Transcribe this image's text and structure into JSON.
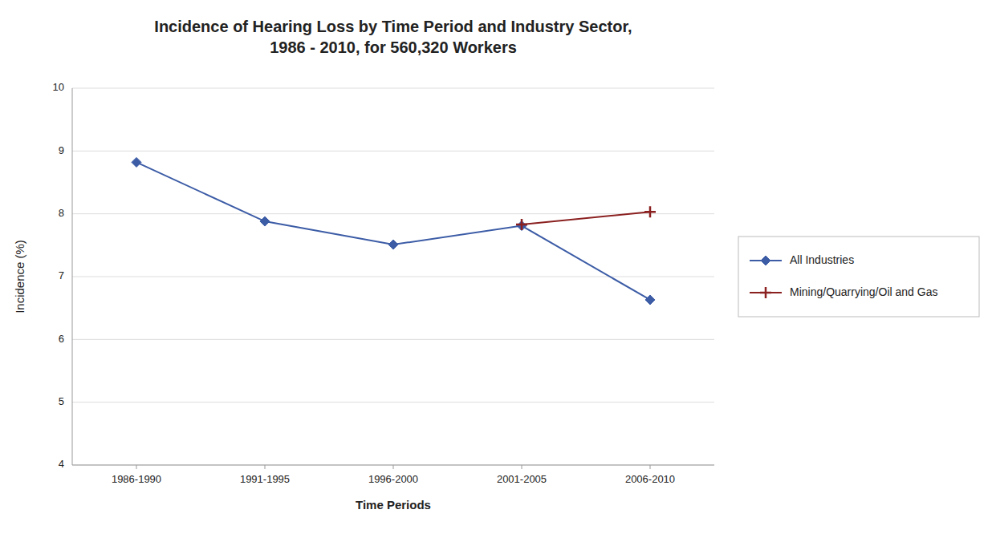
{
  "chart_data": {
    "type": "line",
    "title": "Incidence of Hearing Loss by Time Period and Industry Sector,\n1986 - 2010, for 560,320 Workers",
    "x_label": "Time Periods",
    "y_label": "Incidence (%)",
    "categories": [
      "1986-1990",
      "1991-1995",
      "1996-2000",
      "2001-2005",
      "2006-2010"
    ],
    "series": [
      {
        "name": "All Industries",
        "color": "#3C5CA6",
        "marker": "diamond",
        "values": [
          8.82,
          7.88,
          7.51,
          7.81,
          6.63
        ]
      },
      {
        "name": "Mining/Quarrying/Oil and Gas",
        "color": "#8B2020",
        "marker": "plus",
        "values": [
          null,
          null,
          null,
          7.83,
          8.03
        ]
      }
    ],
    "ylim": [
      4,
      10
    ],
    "yticks": [
      4,
      5,
      6,
      7,
      8,
      9,
      10
    ],
    "grid": true,
    "legend": "right"
  }
}
